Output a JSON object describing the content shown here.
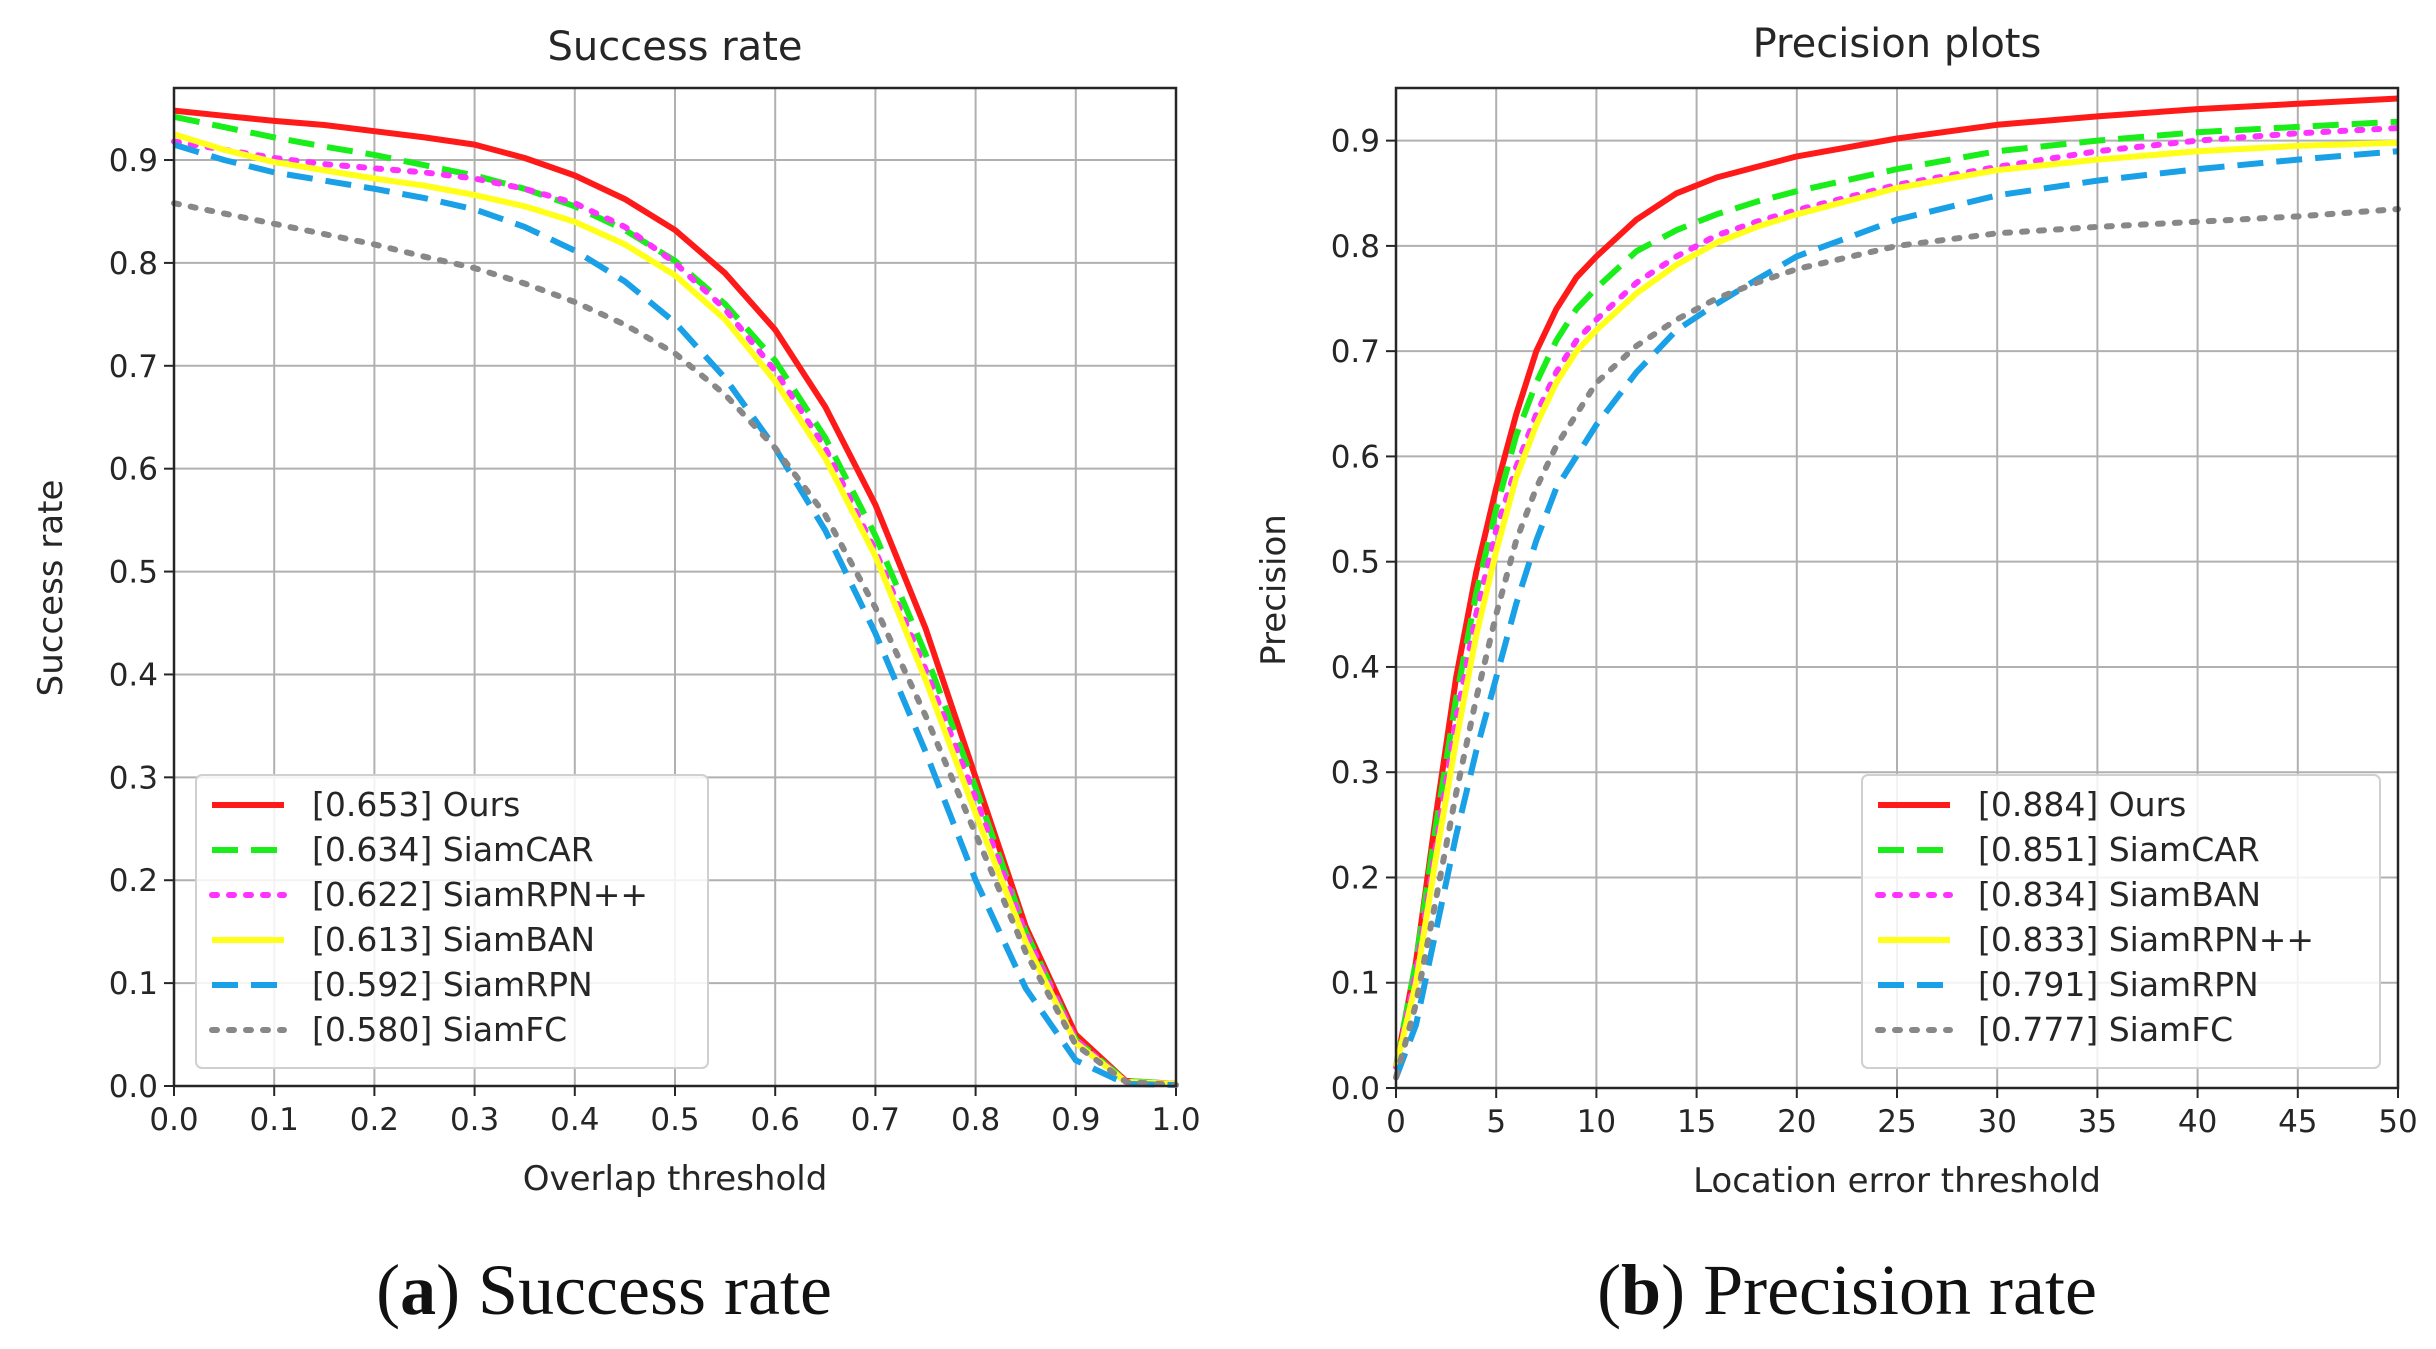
{
  "chart_data": [
    {
      "type": "line",
      "title": "Success rate",
      "xlabel": "Overlap threshold",
      "ylabel": "Success rate",
      "xlim": [
        0,
        1
      ],
      "ylim": [
        0,
        0.97
      ],
      "xticks": [
        "0.0",
        "0.1",
        "0.2",
        "0.3",
        "0.4",
        "0.5",
        "0.6",
        "0.7",
        "0.8",
        "0.9",
        "1.0"
      ],
      "yticks": [
        "0.0",
        "0.1",
        "0.2",
        "0.3",
        "0.4",
        "0.5",
        "0.6",
        "0.7",
        "0.8",
        "0.9"
      ],
      "grid": true,
      "legend_position": "lower-left",
      "caption_letter": "a",
      "caption_text": " Success rate",
      "x": [
        0.0,
        0.05,
        0.1,
        0.15,
        0.2,
        0.25,
        0.3,
        0.35,
        0.4,
        0.45,
        0.5,
        0.55,
        0.6,
        0.65,
        0.7,
        0.75,
        0.8,
        0.85,
        0.9,
        0.95,
        1.0
      ],
      "series": [
        {
          "name": "[0.653] Ours",
          "color": "#ff1a1a",
          "style": "solid",
          "values": [
            0.948,
            0.943,
            0.938,
            0.934,
            0.928,
            0.922,
            0.915,
            0.902,
            0.885,
            0.862,
            0.832,
            0.79,
            0.735,
            0.66,
            0.565,
            0.445,
            0.3,
            0.155,
            0.05,
            0.005,
            0.002
          ]
        },
        {
          "name": "[0.634] SiamCAR",
          "color": "#1aee1a",
          "style": "dashed",
          "values": [
            0.942,
            0.932,
            0.922,
            0.913,
            0.905,
            0.895,
            0.885,
            0.872,
            0.855,
            0.832,
            0.802,
            0.76,
            0.705,
            0.63,
            0.535,
            0.42,
            0.29,
            0.15,
            0.045,
            0.005,
            0.002
          ]
        },
        {
          "name": "[0.622] SiamRPN++",
          "color": "#ff33ff",
          "style": "dotted",
          "values": [
            0.918,
            0.91,
            0.902,
            0.896,
            0.892,
            0.888,
            0.882,
            0.872,
            0.858,
            0.835,
            0.8,
            0.755,
            0.695,
            0.62,
            0.52,
            0.405,
            0.28,
            0.148,
            0.045,
            0.004,
            0.002
          ]
        },
        {
          "name": "[0.613] SiamBAN",
          "color": "#ffff1a",
          "style": "solid",
          "values": [
            0.925,
            0.91,
            0.898,
            0.89,
            0.882,
            0.875,
            0.866,
            0.855,
            0.84,
            0.818,
            0.788,
            0.745,
            0.685,
            0.61,
            0.515,
            0.395,
            0.265,
            0.14,
            0.042,
            0.004,
            0.002
          ]
        },
        {
          "name": "[0.592] SiamRPN",
          "color": "#1aa0e6",
          "style": "dashed",
          "values": [
            0.915,
            0.9,
            0.888,
            0.88,
            0.872,
            0.863,
            0.852,
            0.835,
            0.812,
            0.782,
            0.742,
            0.688,
            0.62,
            0.54,
            0.44,
            0.325,
            0.2,
            0.095,
            0.025,
            0.002,
            0.001
          ]
        },
        {
          "name": "[0.580] SiamFC",
          "color": "#888888",
          "style": "dotted",
          "values": [
            0.858,
            0.848,
            0.838,
            0.828,
            0.818,
            0.806,
            0.795,
            0.78,
            0.762,
            0.74,
            0.712,
            0.672,
            0.62,
            0.555,
            0.465,
            0.36,
            0.245,
            0.13,
            0.04,
            0.004,
            0.001
          ]
        }
      ]
    },
    {
      "type": "line",
      "title": "Precision plots",
      "xlabel": "Location error threshold",
      "ylabel": "Precision",
      "xlim": [
        0,
        50
      ],
      "ylim": [
        0,
        0.95
      ],
      "xticks": [
        "0",
        "5",
        "10",
        "15",
        "20",
        "25",
        "30",
        "35",
        "40",
        "45",
        "50"
      ],
      "yticks": [
        "0.0",
        "0.1",
        "0.2",
        "0.3",
        "0.4",
        "0.5",
        "0.6",
        "0.7",
        "0.8",
        "0.9"
      ],
      "grid": true,
      "legend_position": "lower-right",
      "caption_letter": "b",
      "caption_text": " Precision rate",
      "x": [
        0,
        1,
        2,
        3,
        4,
        5,
        6,
        7,
        8,
        9,
        10,
        12,
        14,
        16,
        18,
        20,
        25,
        30,
        35,
        40,
        45,
        50
      ],
      "series": [
        {
          "name": "[0.884] Ours",
          "color": "#ff1a1a",
          "style": "solid",
          "values": [
            0.02,
            0.12,
            0.26,
            0.39,
            0.49,
            0.57,
            0.64,
            0.7,
            0.74,
            0.77,
            0.79,
            0.825,
            0.85,
            0.865,
            0.875,
            0.885,
            0.902,
            0.915,
            0.923,
            0.93,
            0.935,
            0.94
          ]
        },
        {
          "name": "[0.851] SiamCAR",
          "color": "#1aee1a",
          "style": "dashed",
          "values": [
            0.02,
            0.12,
            0.25,
            0.37,
            0.47,
            0.55,
            0.62,
            0.67,
            0.71,
            0.74,
            0.76,
            0.795,
            0.815,
            0.83,
            0.842,
            0.852,
            0.873,
            0.89,
            0.9,
            0.908,
            0.913,
            0.918
          ]
        },
        {
          "name": "[0.834] SiamBAN",
          "color": "#ff33ff",
          "style": "dotted",
          "values": [
            0.02,
            0.11,
            0.23,
            0.35,
            0.45,
            0.53,
            0.59,
            0.64,
            0.68,
            0.71,
            0.73,
            0.765,
            0.79,
            0.81,
            0.823,
            0.834,
            0.858,
            0.875,
            0.89,
            0.9,
            0.907,
            0.912
          ]
        },
        {
          "name": "[0.833] SiamRPN++",
          "color": "#ffff1a",
          "style": "solid",
          "values": [
            0.02,
            0.1,
            0.22,
            0.33,
            0.43,
            0.51,
            0.58,
            0.63,
            0.67,
            0.7,
            0.72,
            0.755,
            0.782,
            0.803,
            0.818,
            0.83,
            0.855,
            0.872,
            0.882,
            0.89,
            0.895,
            0.898
          ]
        },
        {
          "name": "[0.791] SiamRPN",
          "color": "#1aa0e6",
          "style": "dashed",
          "values": [
            0.01,
            0.06,
            0.15,
            0.24,
            0.32,
            0.39,
            0.46,
            0.52,
            0.57,
            0.6,
            0.63,
            0.68,
            0.72,
            0.745,
            0.768,
            0.79,
            0.825,
            0.848,
            0.862,
            0.873,
            0.882,
            0.89
          ]
        },
        {
          "name": "[0.777] SiamFC",
          "color": "#888888",
          "style": "dotted",
          "values": [
            0.01,
            0.08,
            0.18,
            0.28,
            0.37,
            0.45,
            0.52,
            0.57,
            0.61,
            0.64,
            0.67,
            0.705,
            0.73,
            0.75,
            0.765,
            0.778,
            0.8,
            0.812,
            0.818,
            0.823,
            0.828,
            0.835
          ]
        }
      ]
    }
  ]
}
